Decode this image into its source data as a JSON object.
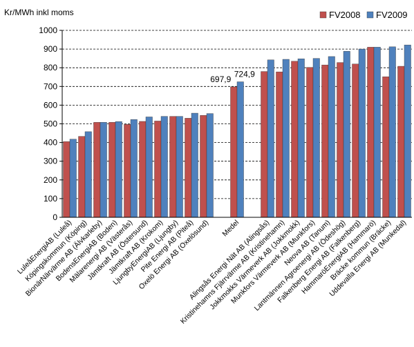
{
  "chart_data": {
    "type": "bar",
    "ylabel": "Kr/MWh inkl moms",
    "ylim": [
      0,
      1000
    ],
    "yticks": [
      0,
      100,
      200,
      300,
      400,
      500,
      600,
      700,
      800,
      900,
      1000
    ],
    "grid": "dashed horizontal",
    "legend_position": "top-right",
    "categories": [
      "LuleåEnergiAB (Luleå)",
      "Köpingskommun (Köping)",
      "BionärNärvärme AB (Älvkarleby)",
      "BodensEnergiAB (Boden)",
      "Mälarenergi AB (Västerås)",
      "Jämtkraft AB (Östersund)",
      "Jämtkraft AB (Krokom)",
      "LjungbyEnergiAB (Ljungby)",
      "Pite Energi AB (Piteå)",
      "Oxelö Energi AB (Oxelösund)",
      "",
      "Medel",
      "",
      "Alingsås Energi Nät AB (Alingsås)",
      "Kristinehamns Fjärrvärme AB (Kristinehamn)",
      "Jokkmokks Värmeverk AB (Jokkmokk)",
      "Munkfors Värmeverk AB (Munkfors)",
      "Neova AB (Tanum)",
      "Lantmännen Agroenergi AB (Ödeshög)",
      "Falkenberg Energi AB (Falkenberg)",
      "HammaröEnergiAB (Hammarö)",
      "Bräcke kommun (Bräcke)",
      "Uddevalla Energi AB (Munkedal)"
    ],
    "series": [
      {
        "name": "FV2008",
        "color": "#c0504d",
        "values": [
          405,
          433,
          508,
          508,
          497,
          513,
          515,
          540,
          530,
          545,
          null,
          697.9,
          null,
          780,
          778,
          835,
          802,
          815,
          828,
          820,
          910,
          752,
          808
        ]
      },
      {
        "name": "FV2009",
        "color": "#4f81bd",
        "values": [
          418,
          458,
          508,
          512,
          523,
          537,
          540,
          540,
          557,
          555,
          null,
          724.9,
          null,
          842,
          845,
          848,
          850,
          860,
          888,
          900,
          910,
          912,
          922
        ]
      }
    ],
    "data_labels": [
      {
        "series": "FV2008",
        "category": "Medel",
        "text": "697,9"
      },
      {
        "series": "FV2009",
        "category": "Medel",
        "text": "724,9"
      }
    ]
  }
}
